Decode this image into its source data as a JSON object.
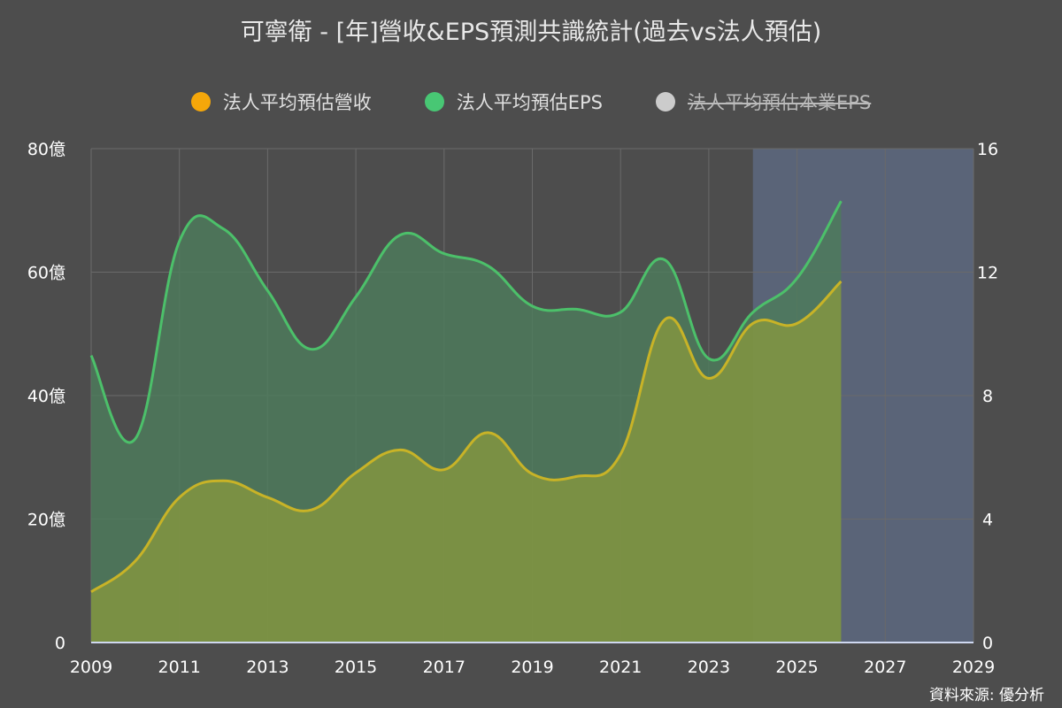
{
  "title": "可寧衛 - [年]營收&EPS預測共識統計(過去vs法人預估)",
  "source": "資料來源: 優分析",
  "colors": {
    "background": "#4d4d4d",
    "revenue": "#f5a70a",
    "revenue_line": "#c8b327",
    "revenue_fill": "#8a9a3e",
    "eps": "#48c774",
    "eps_line": "#4cc06a",
    "eps_fill": "#4e7a5c",
    "core_eps": "#cccccc",
    "forecast_band": "#5a6478"
  },
  "legend": [
    {
      "label": "法人平均預估營收",
      "color": "#f5a70a",
      "enabled": true
    },
    {
      "label": "法人平均預估EPS",
      "color": "#48c774",
      "enabled": true
    },
    {
      "label": "法人平均預估本業EPS",
      "color": "#cccccc",
      "enabled": false
    }
  ],
  "chart_data": {
    "type": "area",
    "x": [
      2009,
      2010,
      2011,
      2012,
      2013,
      2014,
      2015,
      2016,
      2017,
      2018,
      2019,
      2020,
      2021,
      2022,
      2023,
      2024,
      2025,
      2026
    ],
    "series": [
      {
        "name": "法人平均預估營收",
        "axis": "left",
        "values": [
          8.2,
          13.2,
          23.5,
          26.2,
          23.5,
          21.5,
          27.5,
          31.2,
          28.0,
          34.0,
          27.3,
          26.9,
          30.5,
          52.3,
          42.8,
          51.7,
          51.7,
          58.5
        ]
      },
      {
        "name": "法人平均預估EPS",
        "axis": "right",
        "values": [
          9.3,
          6.6,
          13.0,
          13.4,
          11.4,
          9.5,
          11.2,
          13.2,
          12.6,
          12.2,
          10.9,
          10.8,
          10.7,
          12.4,
          9.2,
          10.7,
          11.8,
          14.3
        ]
      }
    ],
    "forecast_start": 2024,
    "x_ticks": [
      "2009",
      "2011",
      "2013",
      "2015",
      "2017",
      "2019",
      "2021",
      "2023",
      "2025",
      "2027",
      "2029"
    ],
    "xlim": [
      2009,
      2029
    ],
    "y_left_ticks": [
      "0",
      "20億",
      "40億",
      "60億",
      "80億"
    ],
    "ylim_left": [
      0,
      80
    ],
    "y_right_ticks": [
      "0",
      "4",
      "8",
      "12",
      "16"
    ],
    "ylim_right": [
      0,
      16
    ],
    "grid": true
  }
}
